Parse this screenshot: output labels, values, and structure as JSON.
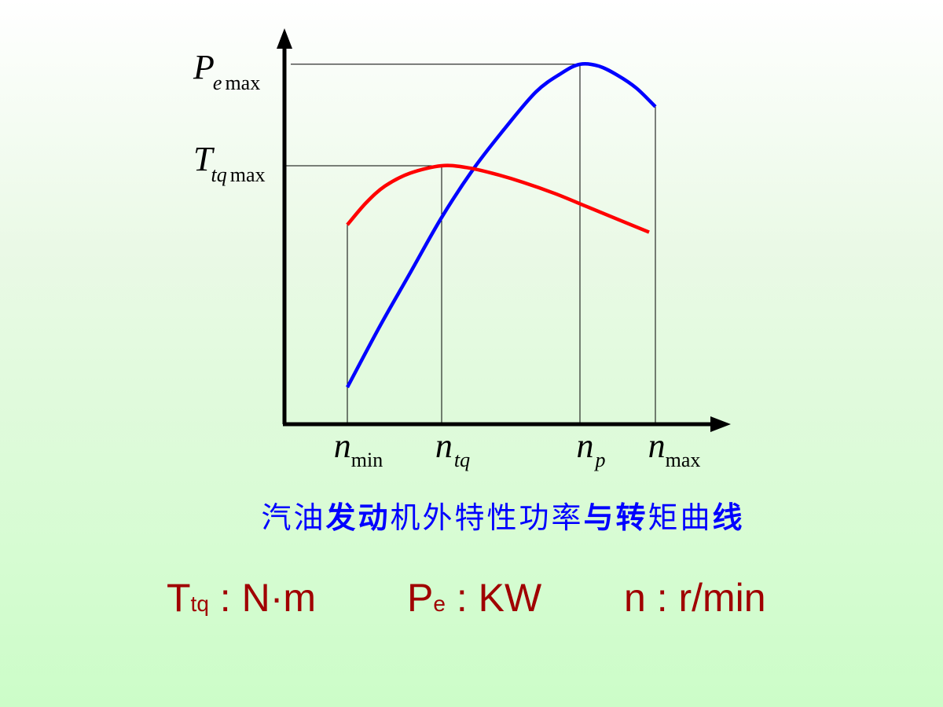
{
  "chart_data": {
    "type": "line",
    "title": "",
    "xlabel": "",
    "ylabel": "",
    "x_ticks": [
      {
        "key": "n_min",
        "base": "n",
        "sub": "min"
      },
      {
        "key": "n_tq",
        "base": "n",
        "sub": "tq"
      },
      {
        "key": "n_p",
        "base": "n",
        "sub": "p"
      },
      {
        "key": "n_max",
        "base": "n",
        "sub": "max"
      }
    ],
    "y_ticks": [
      {
        "key": "P_emax",
        "base": "P",
        "sub": "e",
        "suffix": "max"
      },
      {
        "key": "T_tqmax",
        "base": "T",
        "sub": "tq",
        "suffix": "max"
      }
    ],
    "xlim": [
      0,
      8
    ],
    "ylim": [
      0,
      10
    ],
    "x_positions": {
      "n_min": 1,
      "n_tq": 2.5,
      "n_p": 4.7,
      "n_max": 5.9
    },
    "series": [
      {
        "key": "power",
        "color": "#0000ff",
        "x": [
          1.0,
          1.5,
          2.0,
          2.5,
          3.0,
          3.5,
          4.0,
          4.4,
          4.7,
          5.0,
          5.3,
          5.6,
          5.9
        ],
        "y": [
          1.0,
          2.6,
          4.1,
          5.6,
          6.9,
          8.0,
          9.0,
          9.5,
          9.75,
          9.7,
          9.45,
          9.1,
          8.6
        ]
      },
      {
        "key": "torque",
        "color": "#ff0000",
        "x": [
          1.0,
          1.3,
          1.6,
          2.0,
          2.5,
          2.9,
          3.3,
          3.8,
          4.3,
          4.8,
          5.3,
          5.8
        ],
        "y": [
          5.4,
          6.0,
          6.45,
          6.8,
          7.0,
          6.95,
          6.8,
          6.55,
          6.25,
          5.9,
          5.55,
          5.2
        ]
      }
    ]
  },
  "caption": {
    "part1": "汽油",
    "part2": "发动",
    "part3": "机外特性功率",
    "part4": "与转",
    "part5": "矩曲",
    "part6": "线"
  },
  "units": {
    "torque_symbol": "T",
    "torque_sub": "tq",
    "torque_unit": " : N·m",
    "power_symbol": "P",
    "power_sub": "e",
    "power_unit": " : KW",
    "speed_symbol": "n",
    "speed_unit": " : r/min"
  },
  "colors": {
    "power_curve": "#0000ff",
    "torque_curve": "#ff0000",
    "caption_text": "#0000ff",
    "units_text": "#a00000",
    "axis": "#000000"
  }
}
